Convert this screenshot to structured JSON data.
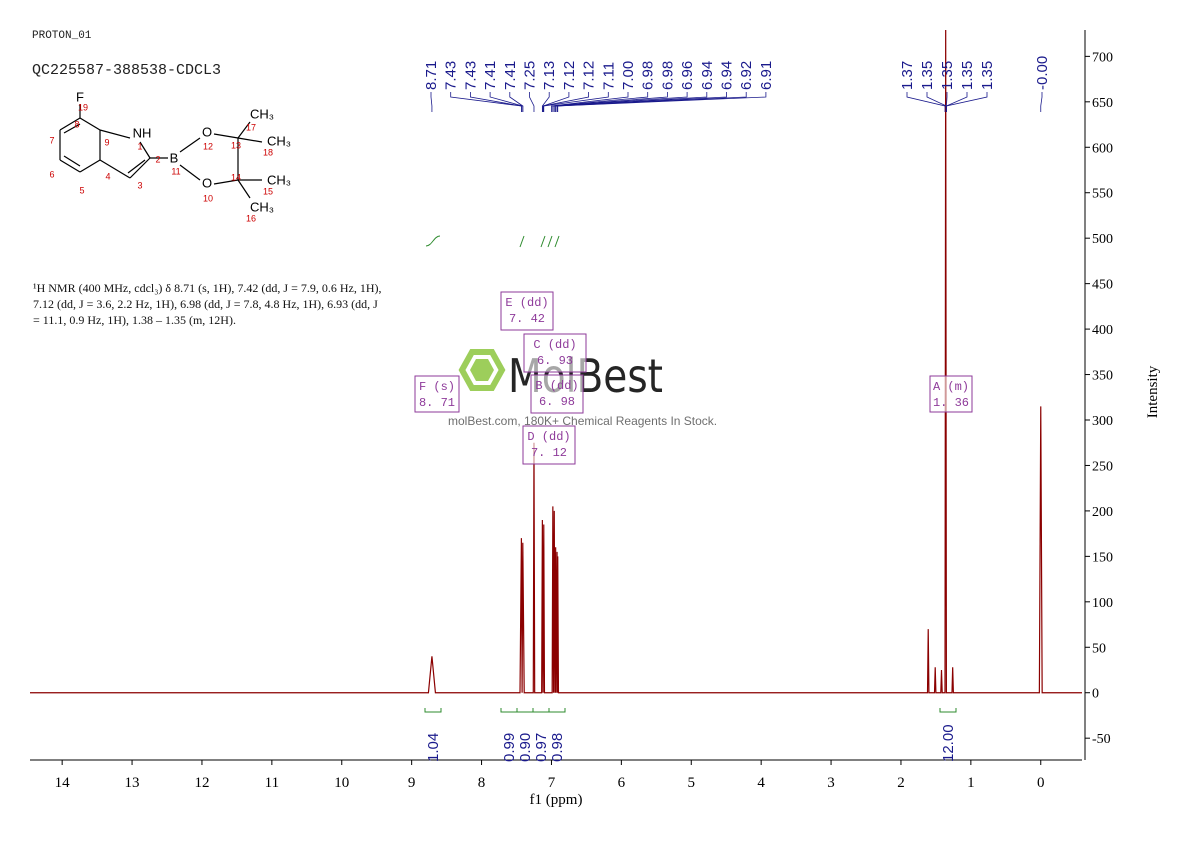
{
  "header": {
    "title": "PROTON_01",
    "sample": "QC225587-388538-CDCL3"
  },
  "molecule": {
    "atoms": [
      "F",
      "NH",
      "B",
      "O",
      "O",
      "CH₃",
      "CH₃",
      "CH₃",
      "CH₃"
    ],
    "numbers": [
      "19",
      "8",
      "9",
      "1",
      "2",
      "7",
      "6",
      "5",
      "4",
      "3",
      "11",
      "12",
      "10",
      "13",
      "14",
      "17",
      "18",
      "15",
      "16"
    ]
  },
  "description": "¹H NMR (400 MHz, cdcl₃) δ 8.71 (s, 1H), 7.42 (dd, J = 7.9, 0.6 Hz, 1H), 7.12 (dd, J = 3.6, 2.2 Hz, 1H), 6.98 (dd, J = 7.8, 4.8 Hz, 1H), 6.93 (dd, J = 11.1, 0.9 Hz, 1H), 1.38 – 1.35 (m, 12H).",
  "watermark": {
    "logo": "MolBest",
    "tagline": "molBest.com, 180K+ Chemical Reagents In Stock."
  },
  "chart_data": {
    "type": "line",
    "x_label": "f1 (ppm)",
    "y_label": "Intensity",
    "xlim": [
      14.46,
      -0.59
    ],
    "xticks": [
      14,
      13,
      12,
      11,
      10,
      9,
      8,
      7,
      6,
      5,
      4,
      3,
      2,
      1,
      0
    ],
    "ylim": [
      -74,
      729
    ],
    "yticks": [
      -50,
      0,
      50,
      100,
      150,
      200,
      250,
      300,
      350,
      400,
      450,
      500,
      550,
      600,
      650,
      700
    ],
    "series": [
      {
        "color": "#8b0000",
        "x": [
          14.46,
          8.76,
          8.71,
          8.66,
          7.45,
          7.43,
          7.42,
          7.41,
          7.39,
          7.26,
          7.25,
          7.24,
          7.14,
          7.13,
          7.12,
          7.11,
          7.1,
          6.99,
          6.98,
          6.97,
          6.96,
          6.95,
          6.94,
          6.935,
          6.92,
          6.915,
          6.91,
          6.9,
          1.62,
          1.61,
          1.6,
          1.52,
          1.51,
          1.5,
          1.43,
          1.42,
          1.41,
          1.37,
          1.36,
          1.35,
          1.27,
          1.26,
          1.25,
          0.02,
          0,
          -0.02,
          -0.59
        ],
        "values": [
          0,
          0,
          40,
          0,
          0,
          170,
          0,
          165,
          0,
          0,
          275,
          0,
          0,
          190,
          0,
          185,
          0,
          0,
          205,
          0,
          200,
          0,
          160,
          0,
          155,
          0,
          150,
          0,
          0,
          70,
          0,
          0,
          28,
          0,
          0,
          25,
          0,
          0,
          740,
          0,
          0,
          28,
          0,
          0,
          315,
          0,
          0
        ]
      }
    ],
    "peak_color": "#1a1a8c",
    "peak_labels": [
      8.71,
      7.43,
      7.43,
      7.41,
      7.41,
      7.25,
      7.13,
      7.12,
      7.12,
      7.11,
      {
        "value": 7,
        "label": "7.00"
      },
      6.98,
      6.98,
      6.96,
      6.94,
      6.94,
      6.92,
      6.91,
      1.37,
      1.35,
      1.35,
      1.35,
      1.35,
      {
        "value": 0,
        "label": "-0.00"
      }
    ],
    "integral_color": "#2e8b2e",
    "integrals": [
      1.04,
      0.99,
      {
        "value": 0.9,
        "label": "0.90"
      },
      0.97,
      0.98,
      {
        "value": 12,
        "label": "12.00"
      }
    ],
    "multiplet_color": "#8e3a9a",
    "multiplets": [
      {
        "label": "F (s)",
        "shift": "8. 71"
      },
      {
        "label": "E (dd)",
        "shift": "7. 42"
      },
      {
        "label": "C (dd)",
        "shift": "6. 93"
      },
      {
        "label": "B (dd)",
        "shift": "6. 98"
      },
      {
        "label": "D (dd)",
        "shift": "7. 12"
      },
      {
        "label": "A (m)",
        "shift": "1. 36"
      }
    ]
  }
}
